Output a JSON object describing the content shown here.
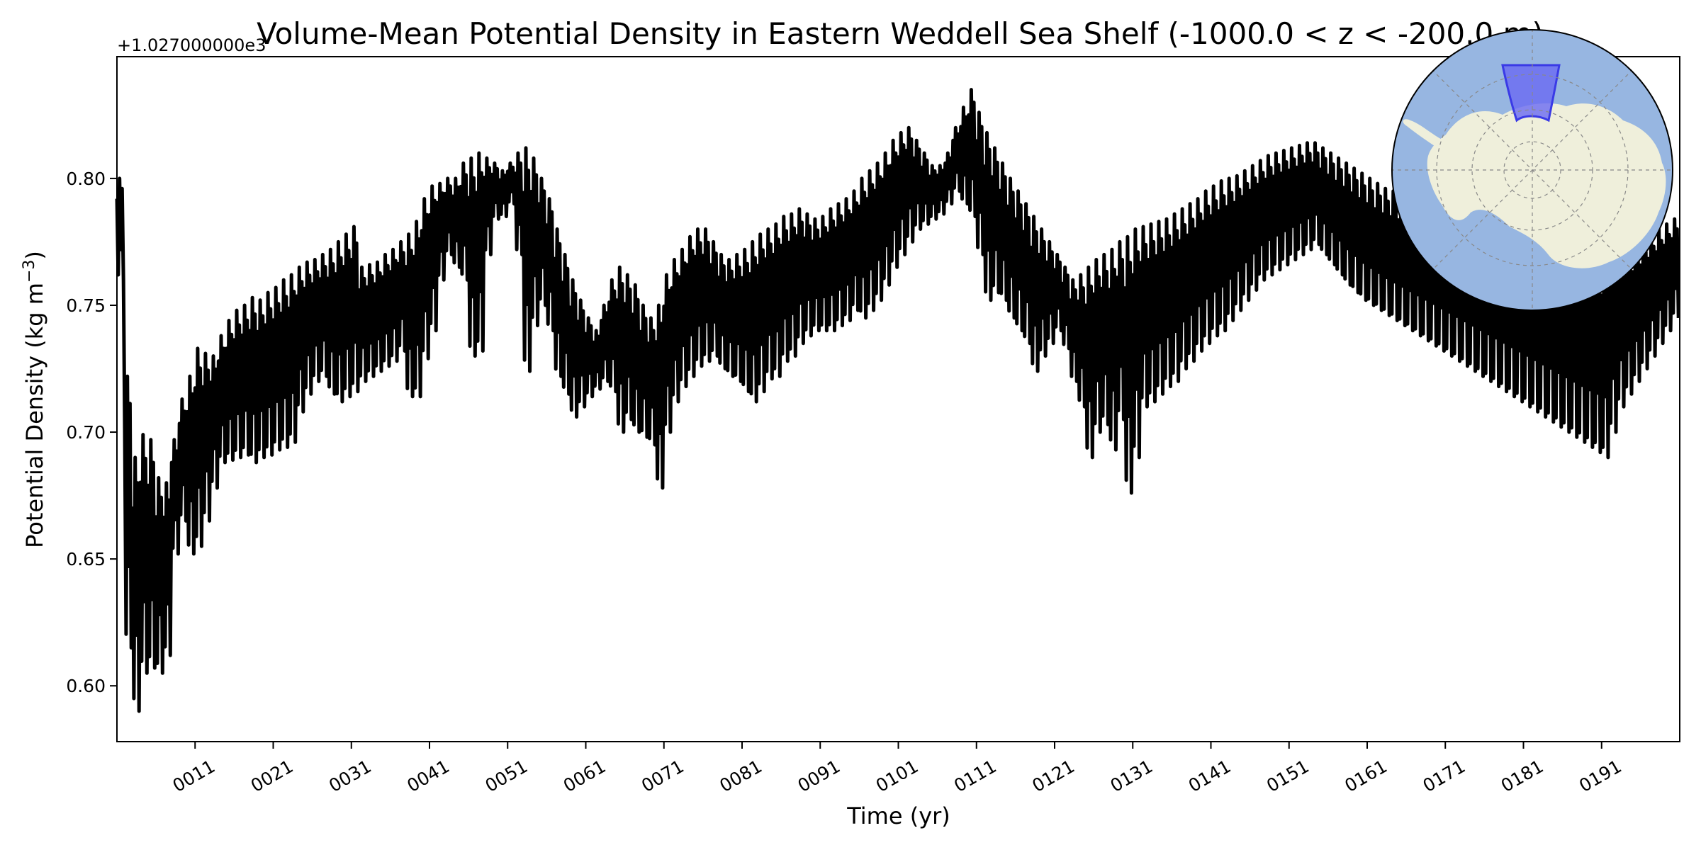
{
  "chart_data": {
    "type": "line",
    "title": "Volume-Mean Potential Density in Eastern Weddell Sea Shelf (-1000.0 < z < -200.0 m)",
    "xlabel": "Time (yr)",
    "ylabel_main": "Potential Density (kg m",
    "ylabel_exp": "−3",
    "ylabel_close": ")",
    "offset_label": "+1.027000000e3",
    "x_tick_labels": [
      "0011",
      "0021",
      "0031",
      "0041",
      "0051",
      "0061",
      "0071",
      "0081",
      "0091",
      "0101",
      "0111",
      "0121",
      "0131",
      "0141",
      "0151",
      "0161",
      "0171",
      "0181",
      "0191"
    ],
    "x_tick_values": [
      11,
      21,
      31,
      41,
      51,
      61,
      71,
      81,
      91,
      101,
      111,
      121,
      131,
      141,
      151,
      161,
      171,
      181,
      191
    ],
    "y_tick_labels": [
      "0.60",
      "0.65",
      "0.70",
      "0.75",
      "0.80"
    ],
    "y_tick_values": [
      0.6,
      0.65,
      0.7,
      0.75,
      0.8
    ],
    "xlim": [
      1,
      201
    ],
    "ylim": [
      0.578,
      0.848
    ],
    "line_color": "#000000",
    "monthly_cycle": true,
    "series": [
      {
        "values_description_free": true,
        "x": [
          1,
          2,
          3,
          4,
          5,
          6,
          7,
          8,
          9,
          10,
          11,
          12,
          13,
          14,
          15,
          16,
          17,
          18,
          19,
          20,
          21,
          22,
          23,
          24,
          25,
          26,
          27,
          28,
          29,
          30,
          31,
          32,
          33,
          34,
          35,
          36,
          37,
          38,
          39,
          40,
          41,
          42,
          43,
          44,
          45,
          46,
          47,
          48,
          49,
          50,
          51,
          52,
          53,
          54,
          55,
          56,
          57,
          58,
          59,
          60,
          61,
          62,
          63,
          64,
          65,
          66,
          67,
          68,
          69,
          70,
          71,
          72,
          73,
          74,
          75,
          76,
          77,
          78,
          79,
          80,
          81,
          82,
          83,
          84,
          85,
          86,
          87,
          88,
          89,
          90,
          91,
          92,
          93,
          94,
          95,
          96,
          97,
          98,
          99,
          100,
          101,
          102,
          103,
          104,
          105,
          106,
          107,
          108,
          109,
          110,
          111,
          112,
          113,
          114,
          115,
          116,
          117,
          118,
          119,
          120,
          121,
          122,
          123,
          124,
          125,
          126,
          127,
          128,
          129,
          130,
          131,
          132,
          133,
          134,
          135,
          136,
          137,
          138,
          139,
          140,
          141,
          142,
          143,
          144,
          145,
          146,
          147,
          148,
          149,
          150,
          151,
          152,
          153,
          154,
          155,
          156,
          157,
          158,
          159,
          160,
          161,
          162,
          163,
          164,
          165,
          166,
          167,
          168,
          169,
          170,
          171,
          172,
          173,
          174,
          175,
          176,
          177,
          178,
          179,
          180,
          181,
          182,
          183,
          184,
          185,
          186,
          187,
          188,
          189,
          190,
          191,
          192,
          193,
          194,
          195,
          196,
          197,
          198,
          199,
          200
        ],
        "upper": [
          0.8,
          0.722,
          0.69,
          0.699,
          0.697,
          0.682,
          0.68,
          0.697,
          0.713,
          0.722,
          0.733,
          0.731,
          0.73,
          0.738,
          0.744,
          0.748,
          0.75,
          0.753,
          0.752,
          0.755,
          0.757,
          0.76,
          0.762,
          0.765,
          0.767,
          0.768,
          0.77,
          0.772,
          0.775,
          0.778,
          0.781,
          0.765,
          0.766,
          0.767,
          0.77,
          0.772,
          0.775,
          0.778,
          0.783,
          0.792,
          0.797,
          0.798,
          0.8,
          0.8,
          0.806,
          0.808,
          0.81,
          0.808,
          0.806,
          0.803,
          0.806,
          0.81,
          0.812,
          0.808,
          0.8,
          0.792,
          0.78,
          0.77,
          0.76,
          0.752,
          0.745,
          0.74,
          0.75,
          0.76,
          0.765,
          0.762,
          0.758,
          0.75,
          0.745,
          0.75,
          0.762,
          0.768,
          0.772,
          0.777,
          0.78,
          0.78,
          0.775,
          0.77,
          0.768,
          0.77,
          0.772,
          0.775,
          0.778,
          0.78,
          0.782,
          0.785,
          0.786,
          0.788,
          0.786,
          0.784,
          0.785,
          0.788,
          0.79,
          0.792,
          0.795,
          0.8,
          0.803,
          0.806,
          0.81,
          0.815,
          0.818,
          0.82,
          0.815,
          0.81,
          0.805,
          0.805,
          0.81,
          0.82,
          0.828,
          0.835,
          0.826,
          0.818,
          0.812,
          0.806,
          0.8,
          0.795,
          0.79,
          0.785,
          0.78,
          0.775,
          0.77,
          0.765,
          0.76,
          0.762,
          0.765,
          0.768,
          0.77,
          0.772,
          0.775,
          0.777,
          0.78,
          0.781,
          0.782,
          0.783,
          0.784,
          0.786,
          0.788,
          0.79,
          0.792,
          0.795,
          0.797,
          0.799,
          0.8,
          0.801,
          0.803,
          0.805,
          0.807,
          0.809,
          0.81,
          0.811,
          0.812,
          0.813,
          0.814,
          0.814,
          0.812,
          0.81,
          0.808,
          0.806,
          0.804,
          0.802,
          0.8,
          0.798,
          0.796,
          0.795,
          0.794,
          0.793,
          0.792,
          0.791,
          0.79,
          0.789,
          0.788,
          0.787,
          0.786,
          0.785,
          0.784,
          0.783,
          0.782,
          0.781,
          0.78,
          0.779,
          0.778,
          0.777,
          0.776,
          0.775,
          0.774,
          0.773,
          0.772,
          0.771,
          0.77,
          0.77,
          0.77,
          0.771,
          0.772,
          0.773,
          0.774,
          0.776,
          0.778,
          0.78,
          0.782,
          0.784
        ],
        "lower": [
          0.76,
          0.615,
          0.59,
          0.605,
          0.607,
          0.605,
          0.612,
          0.652,
          0.665,
          0.652,
          0.655,
          0.665,
          0.678,
          0.688,
          0.689,
          0.69,
          0.691,
          0.688,
          0.69,
          0.691,
          0.693,
          0.694,
          0.696,
          0.708,
          0.715,
          0.72,
          0.722,
          0.715,
          0.712,
          0.714,
          0.716,
          0.72,
          0.722,
          0.724,
          0.726,
          0.728,
          0.732,
          0.714,
          0.714,
          0.729,
          0.74,
          0.76,
          0.77,
          0.765,
          0.76,
          0.73,
          0.732,
          0.77,
          0.784,
          0.785,
          0.79,
          0.77,
          0.724,
          0.742,
          0.75,
          0.74,
          0.722,
          0.715,
          0.706,
          0.71,
          0.714,
          0.717,
          0.72,
          0.716,
          0.7,
          0.705,
          0.7,
          0.698,
          0.695,
          0.678,
          0.7,
          0.712,
          0.718,
          0.722,
          0.726,
          0.728,
          0.73,
          0.725,
          0.722,
          0.72,
          0.716,
          0.712,
          0.716,
          0.721,
          0.722,
          0.728,
          0.73,
          0.735,
          0.738,
          0.74,
          0.74,
          0.74,
          0.742,
          0.744,
          0.748,
          0.745,
          0.748,
          0.752,
          0.758,
          0.765,
          0.77,
          0.775,
          0.78,
          0.782,
          0.784,
          0.786,
          0.79,
          0.795,
          0.79,
          0.785,
          0.77,
          0.752,
          0.755,
          0.752,
          0.745,
          0.74,
          0.735,
          0.724,
          0.73,
          0.735,
          0.74,
          0.733,
          0.72,
          0.71,
          0.69,
          0.7,
          0.703,
          0.693,
          0.705,
          0.676,
          0.69,
          0.71,
          0.712,
          0.715,
          0.718,
          0.72,
          0.725,
          0.728,
          0.732,
          0.735,
          0.738,
          0.74,
          0.744,
          0.748,
          0.752,
          0.756,
          0.76,
          0.762,
          0.764,
          0.766,
          0.768,
          0.77,
          0.772,
          0.774,
          0.77,
          0.766,
          0.762,
          0.758,
          0.755,
          0.752,
          0.75,
          0.748,
          0.746,
          0.744,
          0.742,
          0.74,
          0.738,
          0.736,
          0.734,
          0.732,
          0.73,
          0.728,
          0.726,
          0.724,
          0.722,
          0.72,
          0.718,
          0.716,
          0.714,
          0.712,
          0.71,
          0.708,
          0.706,
          0.704,
          0.702,
          0.7,
          0.698,
          0.696,
          0.694,
          0.692,
          0.69,
          0.7,
          0.71,
          0.715,
          0.72,
          0.725,
          0.73,
          0.735,
          0.74,
          0.745
        ]
      }
    ]
  },
  "inset_map": {
    "ocean_color": "#97b6e1",
    "land_color": "#efefdb",
    "region_fill": "#6a6af2",
    "region_edge": "#3a3ae6"
  }
}
